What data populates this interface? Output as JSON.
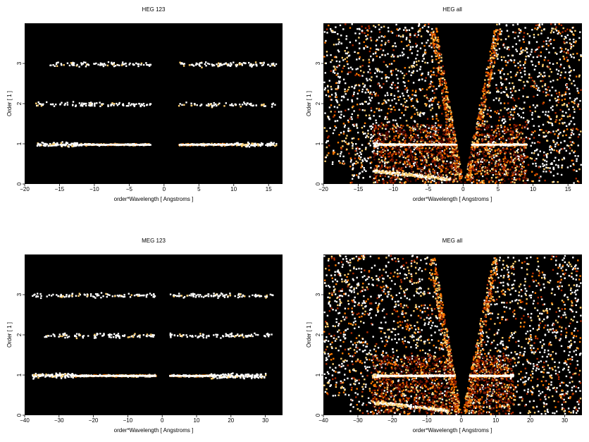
{
  "chart_data": [
    {
      "type": "heatmap",
      "title": "HEG 123",
      "xlabel": "order*Wavelength [ Angstroms ]",
      "ylabel": "Order [ 1 ]",
      "xlim": [
        -20,
        17
      ],
      "ylim": [
        0,
        4
      ],
      "xticks": [
        "−20",
        "−15",
        "−10",
        "−5",
        "0",
        "5",
        "10",
        "15"
      ],
      "yticks": [
        "0",
        "1",
        "2",
        "3"
      ],
      "colormap": [
        "#000000",
        "#5a0a00",
        "#b02a00",
        "#ff7a00",
        "#ffd070",
        "#ffffff"
      ],
      "background": "#000000",
      "gap": [
        -2,
        2
      ],
      "bands": [
        {
          "order": 1,
          "x_range": [
            -18.5,
            16
          ],
          "dense_ranges": [
            [
              -12,
              -1
            ],
            [
              1.5,
              10
            ]
          ]
        },
        {
          "order": 2,
          "x_range": [
            -18.5,
            16
          ],
          "dense_ranges": []
        },
        {
          "order": 3,
          "x_range": [
            -17,
            16
          ],
          "dense_ranges": []
        }
      ]
    },
    {
      "type": "heatmap",
      "title": "HEG all",
      "xlabel": "order*Wavelength [ Angstroms ]",
      "ylabel": "Order [ 1 ]",
      "xlim": [
        -20,
        17
      ],
      "ylim": [
        0,
        4
      ],
      "xticks": [
        "−20",
        "−15",
        "−10",
        "−5",
        "0",
        "5",
        "10",
        "15"
      ],
      "yticks": [
        "0",
        "1",
        "2",
        "3"
      ],
      "colormap": [
        "#000000",
        "#5a0a00",
        "#b02a00",
        "#ff7a00",
        "#ffd070",
        "#ffffff"
      ],
      "background": "#000000",
      "wedge": {
        "left_top": -4,
        "right_top": 4.5,
        "apex": 0
      },
      "region_x_range": [
        -13,
        9
      ],
      "region_y_range": [
        0,
        1.5
      ],
      "bands": [
        {
          "order": 1,
          "x_range": [
            -13,
            9
          ],
          "dense_ranges": [
            [
              -12,
              9
            ]
          ]
        }
      ]
    },
    {
      "type": "heatmap",
      "title": "MEG 123",
      "xlabel": "order*Wavelength [ Angstroms ]",
      "ylabel": "Order [ 1 ]",
      "xlim": [
        -40,
        35
      ],
      "ylim": [
        0,
        4
      ],
      "xticks": [
        "−40",
        "−30",
        "−20",
        "−10",
        "0",
        "10",
        "20",
        "30"
      ],
      "yticks": [
        "0",
        "1",
        "2",
        "3"
      ],
      "colormap": [
        "#000000",
        "#5a0a00",
        "#b02a00",
        "#ff7a00",
        "#ffd070",
        "#ffffff"
      ],
      "background": "#000000",
      "gap": [
        -2,
        2
      ],
      "bands": [
        {
          "order": 1,
          "x_range": [
            -38,
            30
          ],
          "dense_ranges": [
            [
              -26,
              -2
            ],
            [
              2,
              14
            ]
          ]
        },
        {
          "order": 2,
          "x_range": [
            -35,
            32
          ],
          "dense_ranges": []
        },
        {
          "order": 3,
          "x_range": [
            -38,
            32
          ],
          "dense_ranges": []
        }
      ]
    },
    {
      "type": "heatmap",
      "title": "MEG all",
      "xlabel": "order*Wavelength [ Angstroms ]",
      "ylabel": "Order [ 1 ]",
      "xlim": [
        -40,
        35
      ],
      "ylim": [
        0,
        4
      ],
      "xticks": [
        "−40",
        "−30",
        "−20",
        "−10",
        "0",
        "10",
        "20",
        "30"
      ],
      "yticks": [
        "0",
        "1",
        "2",
        "3"
      ],
      "colormap": [
        "#000000",
        "#5a0a00",
        "#b02a00",
        "#ff7a00",
        "#ffd070",
        "#ffffff"
      ],
      "background": "#000000",
      "wedge": {
        "left_top": -8,
        "right_top": 9,
        "apex": 0
      },
      "region_x_range": [
        -26,
        15
      ],
      "region_y_range": [
        0,
        1.5
      ],
      "bands": [
        {
          "order": 1,
          "x_range": [
            -26,
            15
          ],
          "dense_ranges": [
            [
              -24,
              14
            ]
          ]
        }
      ]
    }
  ]
}
